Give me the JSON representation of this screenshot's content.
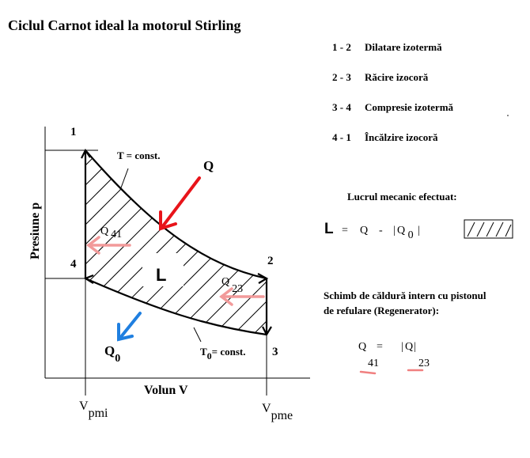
{
  "title": "Ciclul Carnot ideal la motorul Stirling",
  "legend": [
    {
      "nums": "1 - 2",
      "text": "Dilatare izotermă"
    },
    {
      "nums": "2 - 3",
      "text": "Răcire izocoră"
    },
    {
      "nums": "3 - 4",
      "text": "Compresie izotermă"
    },
    {
      "nums": "4 - 1",
      "text": "Încălzire izocoră"
    }
  ],
  "axes": {
    "ylabel": "Presiune p",
    "xlabel": "Volun V"
  },
  "points": {
    "p1": "1",
    "p2": "2",
    "p3": "3",
    "p4": "4"
  },
  "volumes": {
    "vmin_main": "V",
    "vmin_sub": "pmi",
    "vmax_main": "V",
    "vmax_sub": "pme"
  },
  "curves": {
    "hot": "T  =  const.",
    "cold_main": "T",
    "cold_sub": "0",
    "cold_rest": "= const."
  },
  "heat": {
    "q": "Q",
    "q41_main": "Q",
    "q41_sub": "41",
    "q23_main": "Q",
    "q23_sub": "23",
    "q0_main": "Q",
    "q0_sub": "0",
    "work": "L"
  },
  "work_section": {
    "heading": "Lucrul mecanic efectuat:",
    "L": "L",
    "eq": "=",
    "Q": "Q",
    "minus": "-",
    "abs_open": "|",
    "Q0_main": "Q",
    "Q0_sub": "0",
    "abs_close": "|"
  },
  "regen": {
    "line1": "Schimb de căldură intern cu pistonul",
    "line2": "de refulare (Regenerator):",
    "eq_left_main": "Q",
    "eq_left_sub": "41",
    "eq_sign": "=",
    "eq_right_bar_open": "|",
    "eq_right_main": "Q",
    "eq_right_bar_close": "|",
    "eq_right_sub": "23"
  },
  "colors": {
    "red_arrow": "#e8141a",
    "pink_arrow": "#f29a9a",
    "blue_arrow": "#1f7fe0",
    "underline": "#f08080"
  }
}
